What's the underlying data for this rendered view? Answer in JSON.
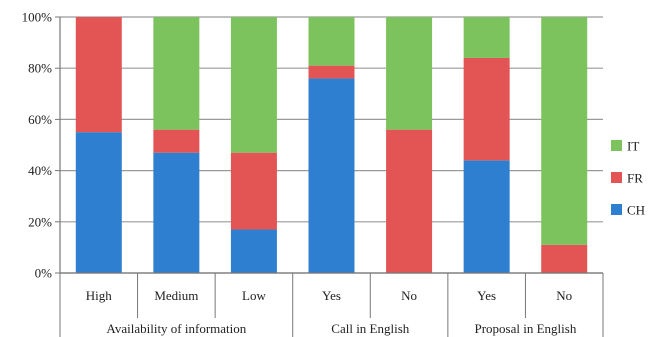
{
  "chart_data": {
    "type": "bar",
    "stacked": true,
    "normalized": true,
    "categories": [
      "High",
      "Medium",
      "Low",
      "Yes",
      "No",
      "Yes",
      "No"
    ],
    "groups": [
      {
        "label": "Availability of information",
        "categories": [
          0,
          1,
          2
        ]
      },
      {
        "label": "Call in English",
        "categories": [
          3,
          4
        ]
      },
      {
        "label": "Proposal in English",
        "categories": [
          5,
          6
        ]
      }
    ],
    "series": [
      {
        "name": "CH",
        "color": "#2f7fd0",
        "values": [
          55,
          47,
          17,
          76,
          0,
          44,
          0
        ]
      },
      {
        "name": "FR",
        "color": "#e35454",
        "values": [
          45,
          9,
          30,
          5,
          56,
          40,
          11
        ]
      },
      {
        "name": "IT",
        "color": "#7cc35e",
        "values": [
          0,
          44,
          53,
          19,
          44,
          16,
          89
        ]
      }
    ],
    "y_ticks": [
      "0%",
      "20%",
      "40%",
      "60%",
      "80%",
      "100%"
    ],
    "ylim": [
      0,
      100
    ],
    "grid": true,
    "legend_position": "right",
    "legend_order": [
      "IT",
      "FR",
      "CH"
    ]
  }
}
